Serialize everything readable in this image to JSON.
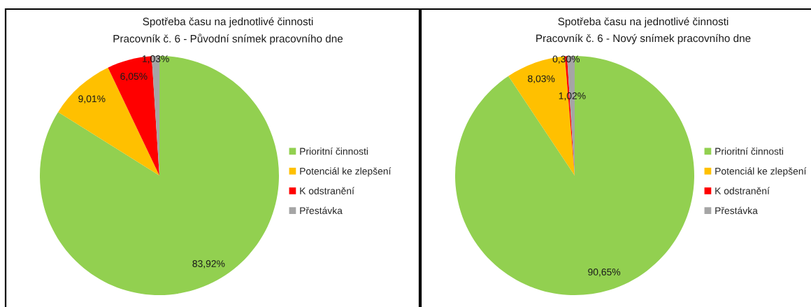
{
  "chart_data": [
    {
      "type": "pie",
      "title": "Spotřeba času na jednotlivé činnosti",
      "subtitle": "Pracovník č. 6 - Původní snímek pracovního dne",
      "categories": [
        "Prioritní činnosti",
        "Potenciál ke zlepšení",
        "K odstranění",
        "Přestávka"
      ],
      "values": [
        83.92,
        9.01,
        6.05,
        1.03
      ],
      "colors": [
        "#92d050",
        "#ffc000",
        "#ff0000",
        "#a5a5a5"
      ],
      "value_labels": [
        "83,92%",
        "9,01%",
        "6,05%",
        "1,03%"
      ],
      "legend": "right"
    },
    {
      "type": "pie",
      "title": "Spotřeba času na jednotlivé činnosti",
      "subtitle": "Pracovník č. 6 - Nový snímek pracovního dne",
      "categories": [
        "Prioritní činnosti",
        "Potenciál ke zlepšení",
        "K odstranění",
        "Přestávka"
      ],
      "values": [
        90.65,
        8.03,
        0.3,
        1.02
      ],
      "colors": [
        "#92d050",
        "#ffc000",
        "#ff0000",
        "#a5a5a5"
      ],
      "value_labels": [
        "90,65%",
        "8,03%",
        "0,30%",
        "1,02%"
      ],
      "legend": "right"
    }
  ]
}
